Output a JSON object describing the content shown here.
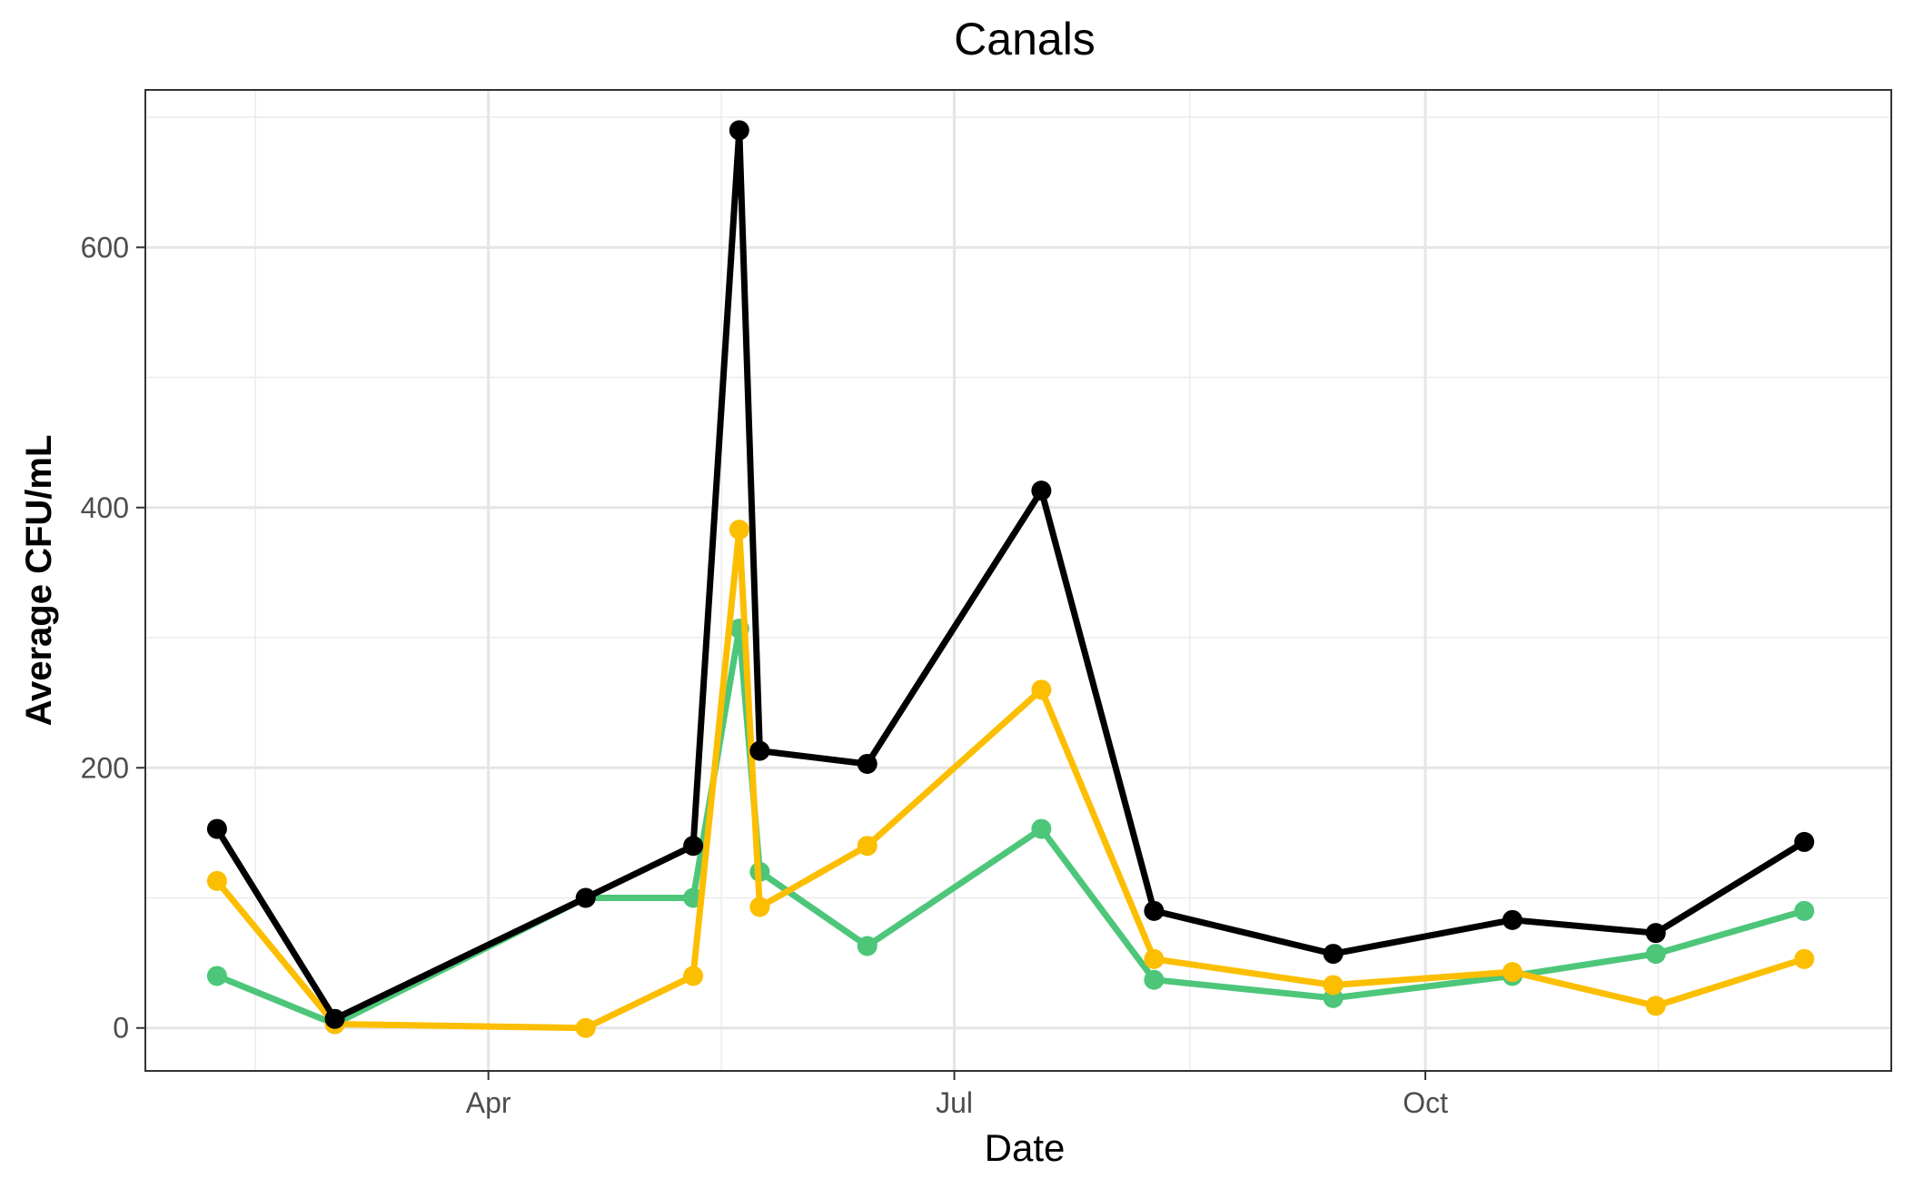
{
  "chart_data": {
    "type": "line",
    "title": "Canals",
    "xlabel": "Date",
    "ylabel": "Average CFU/mL",
    "x_axis_type": "date",
    "xlim": [
      "2023-01-24",
      "2023-12-31"
    ],
    "ylim": [
      -33,
      721
    ],
    "x_ticks": [
      {
        "date": "2023-04-01",
        "label": "Apr"
      },
      {
        "date": "2023-07-01",
        "label": "Jul"
      },
      {
        "date": "2023-10-01",
        "label": "Oct"
      }
    ],
    "y_ticks": [
      0,
      200,
      400,
      600
    ],
    "grid": true,
    "legend": "none",
    "series": [
      {
        "color": "#000000",
        "points": [
          {
            "x": "2023-02-07",
            "y": 153
          },
          {
            "x": "2023-03-02",
            "y": 7
          },
          {
            "x": "2023-04-20",
            "y": 100
          },
          {
            "x": "2023-05-11",
            "y": 140
          },
          {
            "x": "2023-05-20",
            "y": 690
          },
          {
            "x": "2023-05-24",
            "y": 213
          },
          {
            "x": "2023-06-14",
            "y": 203
          },
          {
            "x": "2023-07-18",
            "y": 413
          },
          {
            "x": "2023-08-09",
            "y": 90
          },
          {
            "x": "2023-09-13",
            "y": 57
          },
          {
            "x": "2023-10-18",
            "y": 83
          },
          {
            "x": "2023-11-15",
            "y": 73
          },
          {
            "x": "2023-12-14",
            "y": 143
          }
        ]
      },
      {
        "color": "#4dc67a",
        "points": [
          {
            "x": "2023-02-07",
            "y": 40
          },
          {
            "x": "2023-03-02",
            "y": 3
          },
          {
            "x": "2023-04-20",
            "y": 100
          },
          {
            "x": "2023-05-11",
            "y": 100
          },
          {
            "x": "2023-05-20",
            "y": 307
          },
          {
            "x": "2023-05-24",
            "y": 120
          },
          {
            "x": "2023-06-14",
            "y": 63
          },
          {
            "x": "2023-07-18",
            "y": 153
          },
          {
            "x": "2023-08-09",
            "y": 37
          },
          {
            "x": "2023-09-13",
            "y": 23
          },
          {
            "x": "2023-10-18",
            "y": 40
          },
          {
            "x": "2023-11-15",
            "y": 57
          },
          {
            "x": "2023-12-14",
            "y": 90
          }
        ]
      },
      {
        "color": "#fcbe00",
        "points": [
          {
            "x": "2023-02-07",
            "y": 113
          },
          {
            "x": "2023-03-02",
            "y": 3
          },
          {
            "x": "2023-04-20",
            "y": 0
          },
          {
            "x": "2023-05-11",
            "y": 40
          },
          {
            "x": "2023-05-20",
            "y": 383
          },
          {
            "x": "2023-05-24",
            "y": 93
          },
          {
            "x": "2023-06-14",
            "y": 140
          },
          {
            "x": "2023-07-18",
            "y": 260
          },
          {
            "x": "2023-08-09",
            "y": 53
          },
          {
            "x": "2023-09-13",
            "y": 33
          },
          {
            "x": "2023-10-18",
            "y": 43
          },
          {
            "x": "2023-11-15",
            "y": 17
          },
          {
            "x": "2023-12-14",
            "y": 53
          }
        ]
      }
    ]
  }
}
